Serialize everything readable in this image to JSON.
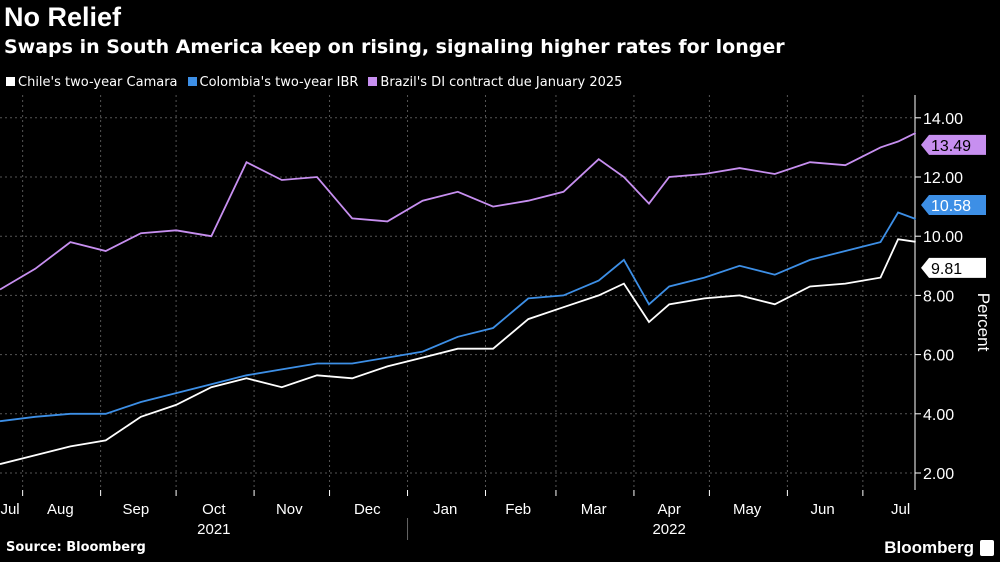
{
  "header": {
    "title": "No Relief",
    "subtitle": "Swaps in South America keep on rising, signaling higher rates for longer"
  },
  "footer": {
    "source": "Source: Bloomberg",
    "brand": "Bloomberg"
  },
  "chart_data": {
    "type": "line",
    "ylabel": "Percent",
    "ylim": [
      1.5,
      14.5
    ],
    "yticks": [
      "2.00",
      "4.00",
      "6.00",
      "8.00",
      "10.00",
      "12.00",
      "14.00"
    ],
    "xlim": [
      "2021-07-23",
      "2022-07-29"
    ],
    "month_labels": [
      {
        "label": "Jul",
        "date": "2021-07-27"
      },
      {
        "label": "Aug",
        "date": "2021-08-16"
      },
      {
        "label": "Sep",
        "date": "2021-09-15"
      },
      {
        "label": "Oct",
        "date": "2021-10-16"
      },
      {
        "label": "Nov",
        "date": "2021-11-15"
      },
      {
        "label": "Dec",
        "date": "2021-12-16"
      },
      {
        "label": "Jan",
        "date": "2022-01-16"
      },
      {
        "label": "Feb",
        "date": "2022-02-14"
      },
      {
        "label": "Mar",
        "date": "2022-03-16"
      },
      {
        "label": "Apr",
        "date": "2022-04-15"
      },
      {
        "label": "May",
        "date": "2022-05-16"
      },
      {
        "label": "Jun",
        "date": "2022-06-15"
      },
      {
        "label": "Jul",
        "date": "2022-07-16"
      }
    ],
    "year_labels": [
      {
        "label": "2021",
        "date": "2021-10-16"
      },
      {
        "label": "2022",
        "date": "2022-04-15"
      }
    ],
    "grid": true,
    "legend_placement": "top-left",
    "x": [
      "2021-07-23",
      "2021-08-06",
      "2021-08-20",
      "2021-09-03",
      "2021-09-17",
      "2021-10-01",
      "2021-10-15",
      "2021-10-29",
      "2021-11-12",
      "2021-11-26",
      "2021-12-10",
      "2021-12-24",
      "2022-01-07",
      "2022-01-21",
      "2022-02-04",
      "2022-02-18",
      "2022-03-04",
      "2022-03-18",
      "2022-03-28",
      "2022-04-07",
      "2022-04-15",
      "2022-04-29",
      "2022-05-13",
      "2022-05-27",
      "2022-06-10",
      "2022-06-24",
      "2022-07-08",
      "2022-07-15",
      "2022-07-22"
    ],
    "series": [
      {
        "name": "Chile's two-year Camara",
        "color": "#ffffff",
        "last_label": "9.81",
        "values": [
          2.3,
          2.6,
          2.9,
          3.1,
          3.9,
          4.3,
          4.9,
          5.2,
          4.9,
          5.3,
          5.2,
          5.6,
          5.9,
          6.2,
          6.2,
          7.2,
          7.6,
          8.0,
          8.4,
          7.1,
          7.7,
          7.9,
          8.0,
          7.7,
          8.3,
          8.4,
          8.6,
          9.9,
          9.81
        ]
      },
      {
        "name": "Colombia's two-year IBR",
        "color": "#3d8fe6",
        "last_label": "10.58",
        "values": [
          3.75,
          3.9,
          4.0,
          4.0,
          4.4,
          4.7,
          5.0,
          5.3,
          5.5,
          5.7,
          5.7,
          5.9,
          6.1,
          6.6,
          6.9,
          7.9,
          8.0,
          8.5,
          9.2,
          7.7,
          8.3,
          8.6,
          9.0,
          8.7,
          9.2,
          9.5,
          9.8,
          10.8,
          10.58
        ]
      },
      {
        "name": "Brazil's DI contract due January 2025",
        "color": "#c78ff0",
        "last_label": "13.49",
        "values": [
          8.2,
          8.9,
          9.8,
          9.5,
          10.1,
          10.2,
          10.0,
          12.5,
          11.9,
          12.0,
          10.6,
          10.5,
          11.2,
          11.5,
          11.0,
          11.2,
          11.5,
          12.6,
          12.0,
          11.1,
          12.0,
          12.1,
          12.3,
          12.1,
          12.5,
          12.4,
          13.0,
          13.2,
          13.49
        ]
      }
    ]
  }
}
